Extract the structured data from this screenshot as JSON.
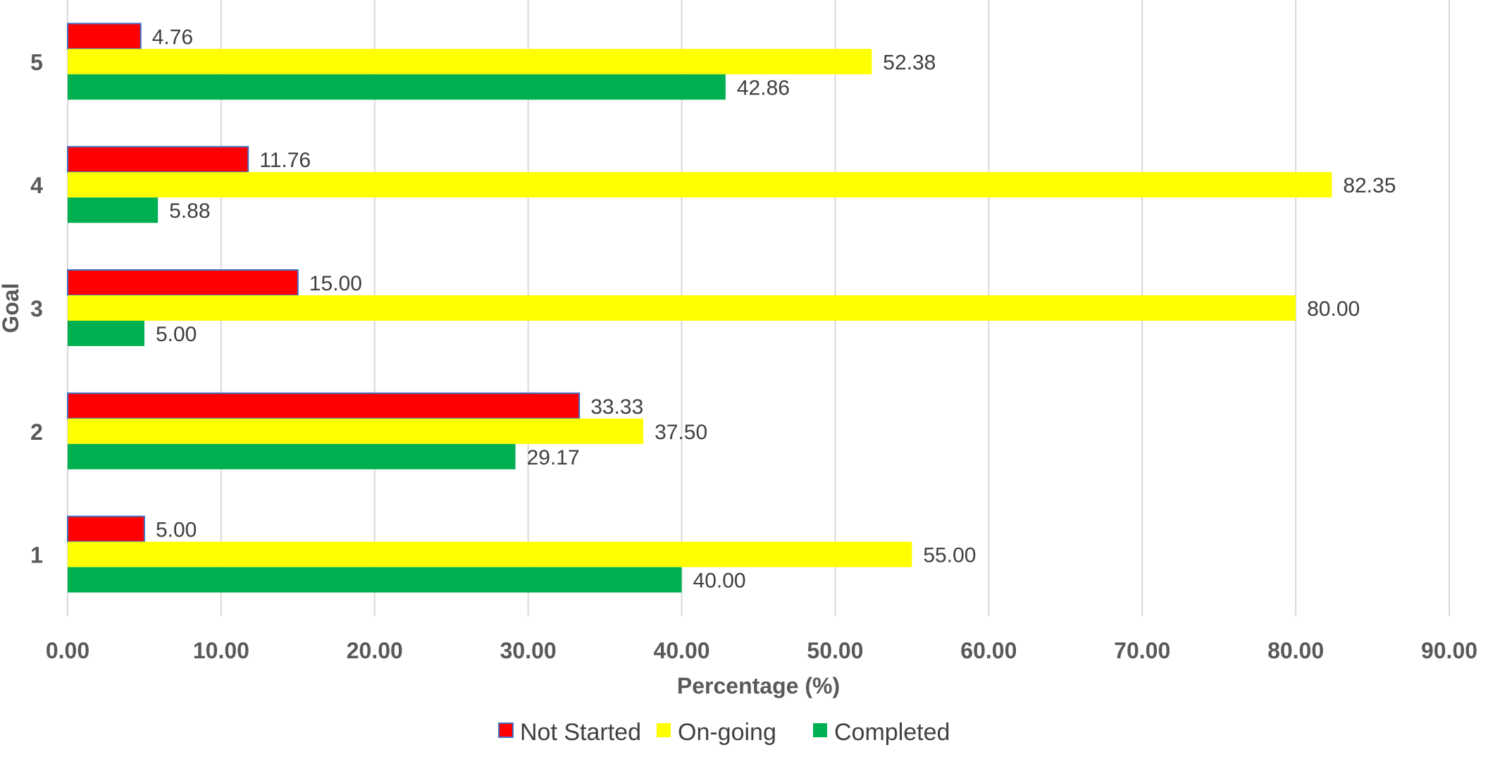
{
  "chart_data": {
    "type": "bar",
    "orientation": "horizontal",
    "categories": [
      "1",
      "2",
      "3",
      "4",
      "5"
    ],
    "series": [
      {
        "name": "Not Started",
        "color": "#ff0000",
        "border": "#4472c4",
        "values": [
          5.0,
          33.33,
          15.0,
          11.76,
          4.76
        ],
        "labels": [
          "5.00",
          "33.33",
          "15.00",
          "11.76",
          "4.76"
        ]
      },
      {
        "name": "On-going",
        "color": "#ffff00",
        "values": [
          55.0,
          37.5,
          80.0,
          82.35,
          52.38
        ],
        "labels": [
          "55.00",
          "37.50",
          "80.00",
          "82.35",
          "52.38"
        ]
      },
      {
        "name": "Completed",
        "color": "#00b050",
        "values": [
          40.0,
          29.17,
          5.0,
          5.88,
          42.86
        ],
        "labels": [
          "40.00",
          "29.17",
          "5.00",
          "5.88",
          "42.86"
        ]
      }
    ],
    "xlabel": "Percentage (%)",
    "ylabel": "Goal",
    "xlim": [
      0,
      90
    ],
    "xticks": [
      "0.00",
      "10.00",
      "20.00",
      "30.00",
      "40.00",
      "50.00",
      "60.00",
      "70.00",
      "80.00",
      "90.00"
    ],
    "grid": "vertical",
    "legend_position": "bottom"
  }
}
